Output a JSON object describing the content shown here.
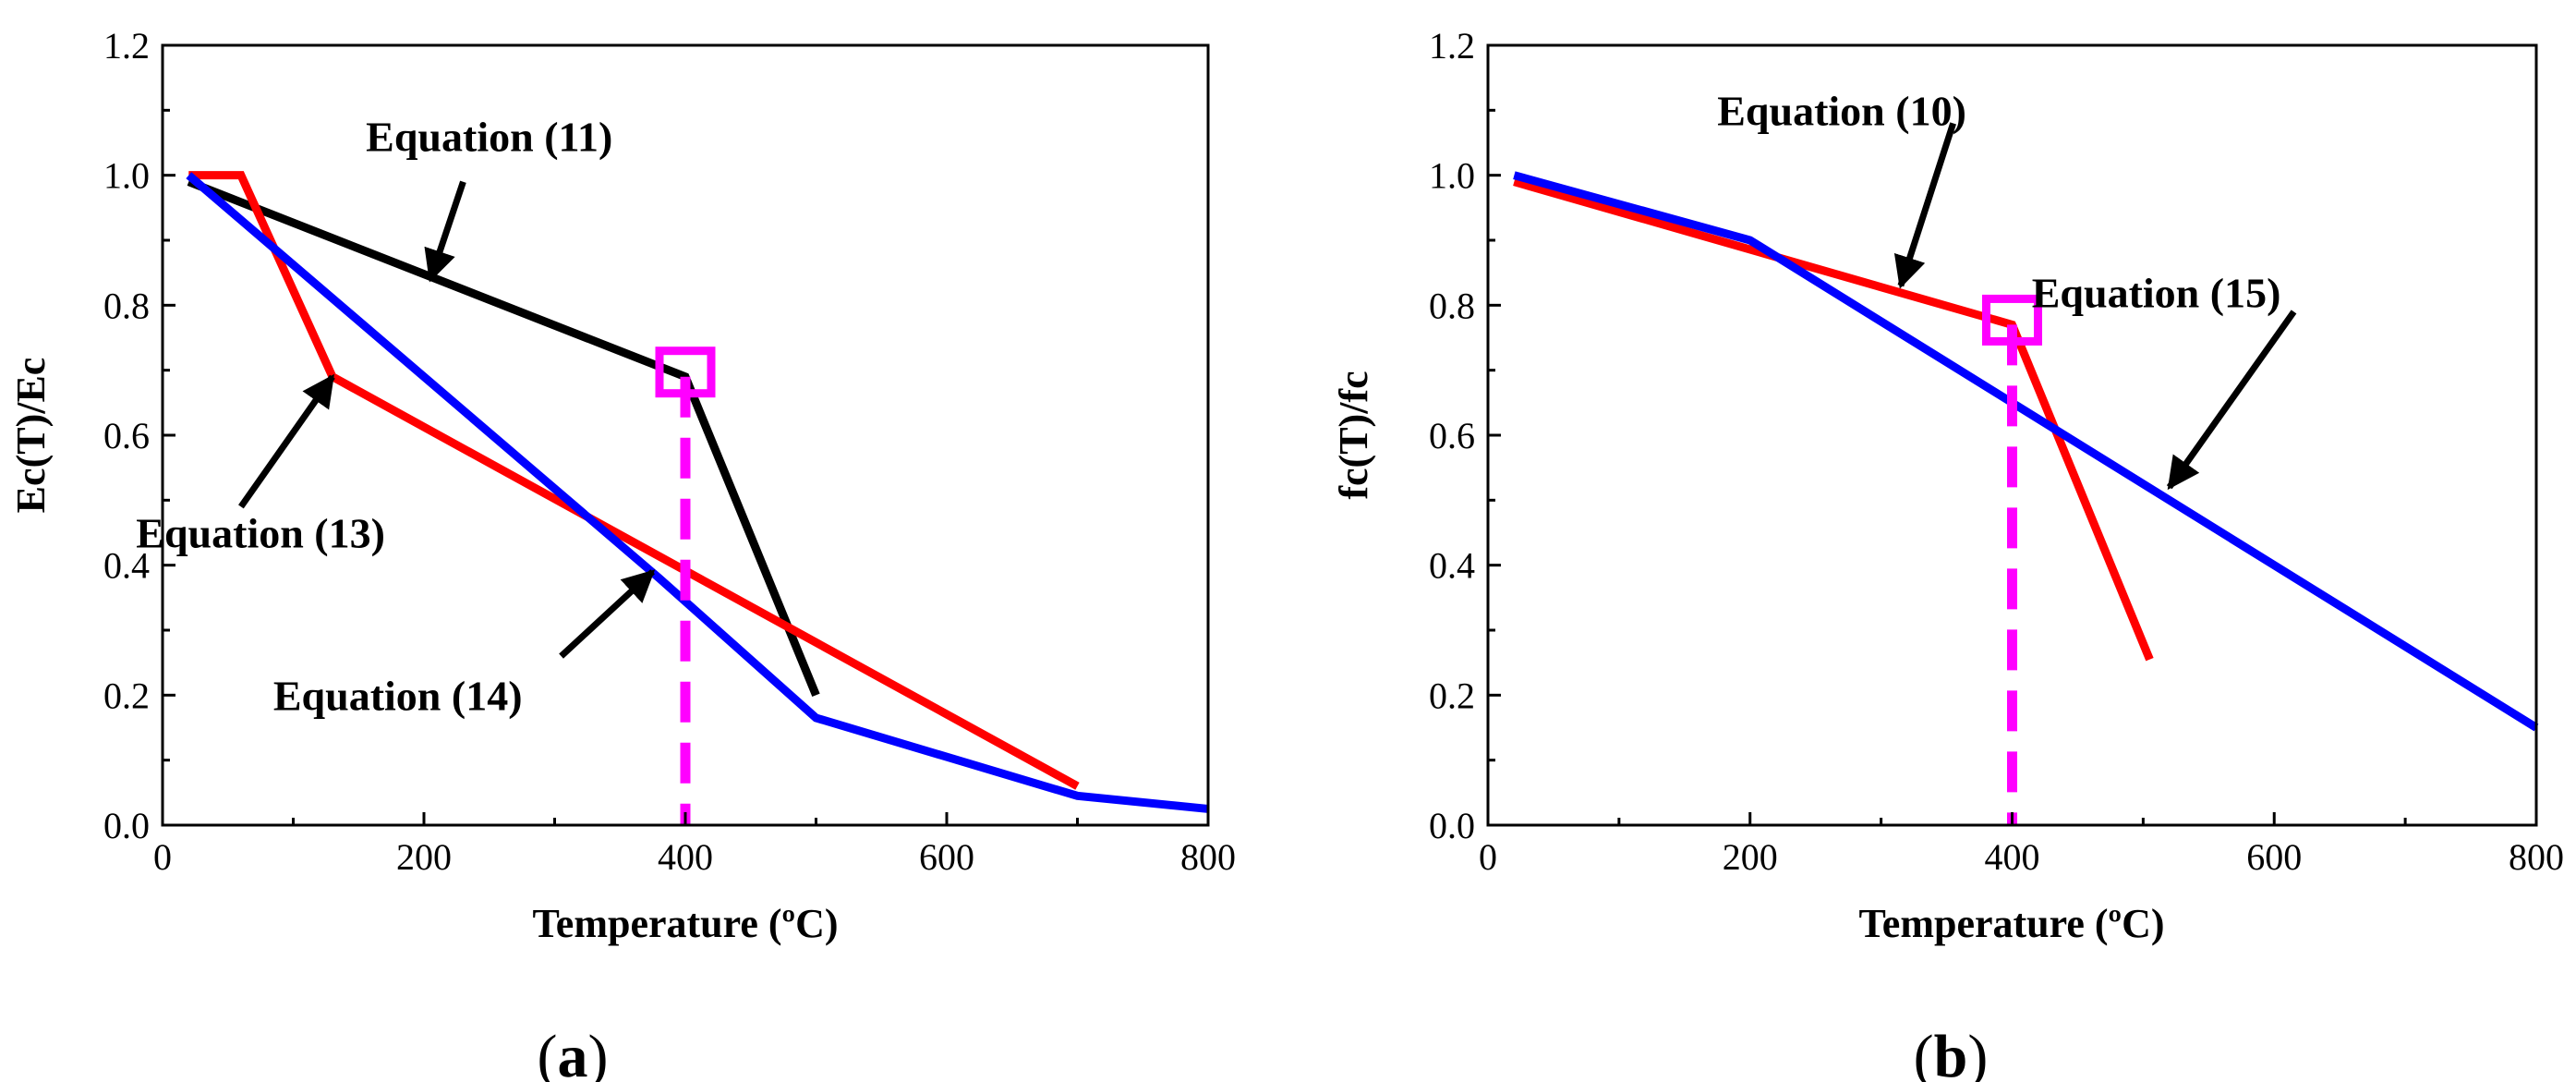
{
  "chart_data": [
    {
      "type": "line",
      "panel_label": "a",
      "xlabel": "Temperature (ºC)",
      "ylabel": "Ec(T)/Ec",
      "xlim": [
        0,
        800
      ],
      "ylim": [
        0,
        1.2
      ],
      "xticks": [
        "0",
        "200",
        "400",
        "600",
        "800"
      ],
      "yticks": [
        "0.0",
        "0.2",
        "0.4",
        "0.6",
        "0.8",
        "1.0",
        "1.2"
      ],
      "colors": {
        "eq11": "#000000",
        "eq13": "#ff0000",
        "eq14": "#0000ff",
        "marker": "#ff00ff"
      },
      "series": [
        {
          "name": "Equation (11)",
          "color": "#000000",
          "x": [
            20,
            400,
            500
          ],
          "y": [
            0.99,
            0.69,
            0.2
          ]
        },
        {
          "name": "Equation (13)",
          "color": "#ff0000",
          "x": [
            20,
            60,
            130,
            700
          ],
          "y": [
            1.0,
            1.0,
            0.69,
            0.06
          ]
        },
        {
          "name": "Equation (14)",
          "color": "#0000ff",
          "x": [
            20,
            380,
            500,
            700,
            800
          ],
          "y": [
            1.0,
            0.38,
            0.165,
            0.045,
            0.025
          ]
        }
      ],
      "marker": {
        "x": 400,
        "y": 0.69,
        "shape": "square"
      },
      "annotations": [
        {
          "text": "Equation (11)",
          "text_x": 250,
          "text_y": 1.06,
          "arrow_from": [
            230,
            0.99
          ],
          "arrow_to": [
            205,
            0.84
          ]
        },
        {
          "text": "Equation (13)",
          "text_x": 75,
          "text_y": 0.45,
          "arrow_from": [
            60,
            0.49
          ],
          "arrow_to": [
            130,
            0.69
          ]
        },
        {
          "text": "Equation (14)",
          "text_x": 180,
          "text_y": 0.2,
          "arrow_from": [
            305,
            0.26
          ],
          "arrow_to": [
            375,
            0.39
          ]
        }
      ],
      "extra_arrow": {
        "from": [
          400,
          0.69
        ],
        "to": [
          500,
          0.2
        ]
      }
    },
    {
      "type": "line",
      "panel_label": "b",
      "xlabel": "Temperature (ºC)",
      "ylabel": "fc(T)/fc",
      "xlim": [
        0,
        800
      ],
      "ylim": [
        0,
        1.2
      ],
      "xticks": [
        "0",
        "200",
        "400",
        "600",
        "800"
      ],
      "yticks": [
        "0.0",
        "0.2",
        "0.4",
        "0.6",
        "0.8",
        "1.0",
        "1.2"
      ],
      "series": [
        {
          "name": "Equation (10)",
          "color": "#ff0000",
          "x": [
            20,
            400,
            505
          ],
          "y": [
            0.99,
            0.77,
            0.255
          ]
        },
        {
          "name": "Equation (15)",
          "color": "#0000ff",
          "x": [
            20,
            200,
            800
          ],
          "y": [
            1.0,
            0.9,
            0.15
          ]
        }
      ],
      "marker": {
        "x": 400,
        "y": 0.77,
        "shape": "square"
      },
      "annotations": [
        {
          "text": "Equation (10)",
          "text_x": 270,
          "text_y": 1.1,
          "arrow_from": [
            355,
            1.08
          ],
          "arrow_to": [
            315,
            0.83
          ]
        },
        {
          "text": "Equation (15)",
          "text_x": 510,
          "text_y": 0.82,
          "arrow_from": [
            615,
            0.79
          ],
          "arrow_to": [
            520,
            0.52
          ]
        }
      ]
    }
  ]
}
